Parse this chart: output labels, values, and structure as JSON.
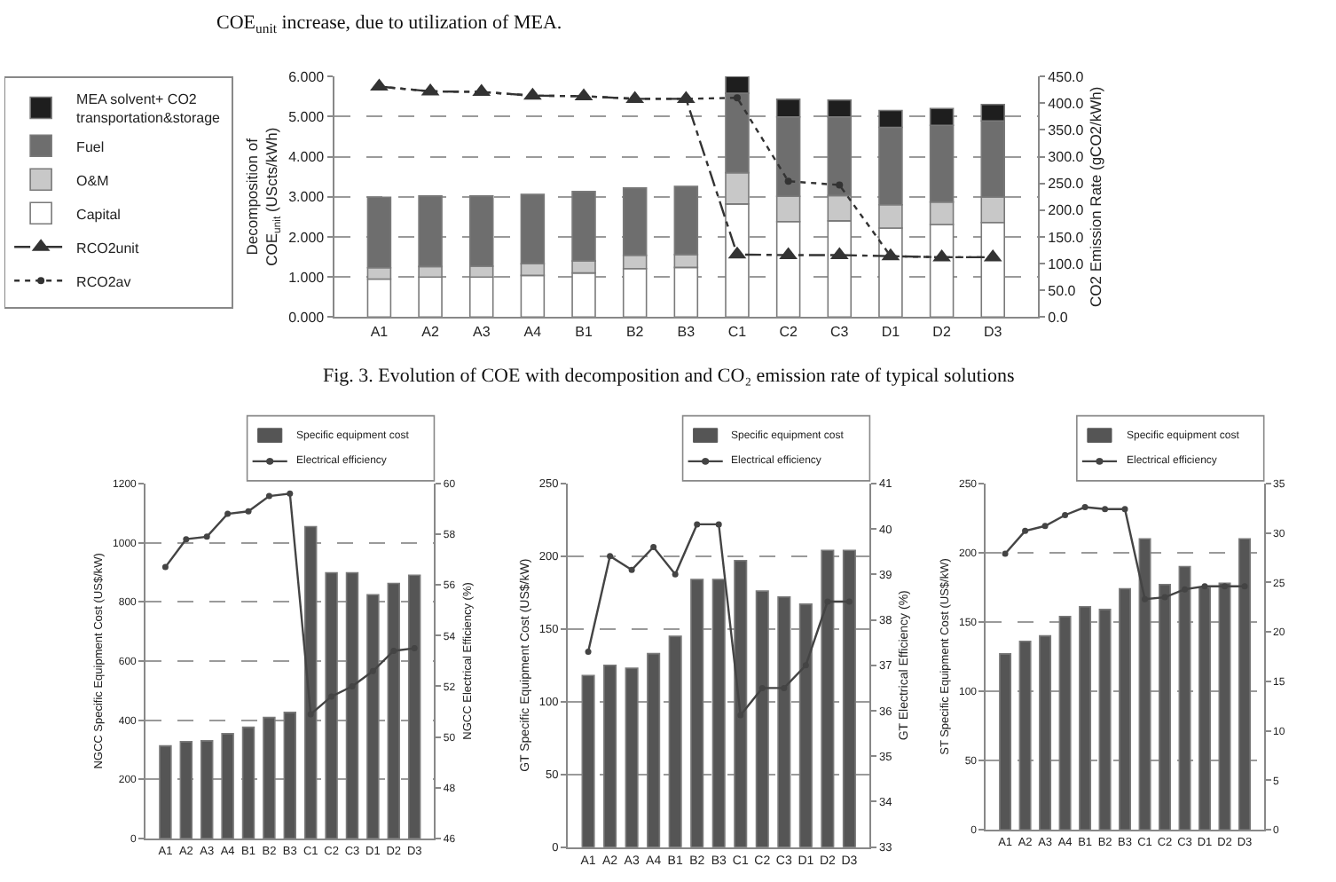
{
  "chart_data": [
    {
      "type": "bar",
      "stacked": true,
      "ylabel": "Decomposition of COE$_{unit}$ (UScts/kWh)",
      "y2label": "CO2 Emission Rate (gCO2/kWh)",
      "annotations": [
        "COE$_{unit}$ increase, due to utilization of MEA.",
        "Fig. 3. Evolution of COE with decomposition and CO₂ emission rate of typical solutions"
      ],
      "categories": [
        "A1",
        "A2",
        "A3",
        "A4",
        "B1",
        "B2",
        "B3",
        "C1",
        "C2",
        "C3",
        "D1",
        "D2",
        "D3"
      ],
      "series": [
        {
          "name": "Capital",
          "color": "#ffffff",
          "values": [
            0.95,
            1.0,
            1.0,
            1.04,
            1.1,
            1.21,
            1.24,
            2.82,
            2.38,
            2.4,
            2.22,
            2.31,
            2.36
          ]
        },
        {
          "name": "O&M",
          "color": "#c8c8c8",
          "values": [
            0.28,
            0.26,
            0.27,
            0.29,
            0.3,
            0.33,
            0.32,
            0.78,
            0.63,
            0.63,
            0.58,
            0.56,
            0.63
          ]
        },
        {
          "name": "Fuel",
          "color": "#6e6e6e",
          "values": [
            1.76,
            1.76,
            1.75,
            1.73,
            1.73,
            1.68,
            1.7,
            1.98,
            1.98,
            1.96,
            1.93,
            1.91,
            1.9
          ]
        },
        {
          "name": "MEA solvent+ CO2 transportation&storage",
          "color": "#1e1e1e",
          "values": [
            null,
            null,
            null,
            null,
            null,
            null,
            null,
            0.42,
            0.44,
            0.42,
            0.42,
            0.42,
            0.41
          ]
        },
        {
          "name": "RCO2unit",
          "type": "line",
          "axis": "y2",
          "color": "#333333",
          "marker": "triangle",
          "line_style": "dashed",
          "values": [
            431,
            422,
            421,
            414,
            413,
            408,
            408,
            117,
            116,
            116,
            114,
            112,
            112
          ]
        },
        {
          "name": "RCO2av",
          "type": "line",
          "axis": "y2",
          "color": "#333333",
          "marker": "circle",
          "line_style": "dotted",
          "values": [
            431,
            422,
            421,
            414,
            413,
            408,
            408,
            410,
            254,
            247,
            114,
            112,
            112
          ]
        }
      ],
      "ylim": [
        0,
        6
      ],
      "yticks": [
        {
          "value": 0,
          "label": "0.000"
        },
        {
          "value": 1,
          "label": "1.000"
        },
        {
          "value": 2,
          "label": "2.000"
        },
        {
          "value": 3,
          "label": "3.000"
        },
        {
          "value": 4,
          "label": "4.000"
        },
        {
          "value": 5,
          "label": "5.000"
        },
        {
          "value": 6,
          "label": "6.000"
        }
      ],
      "y2lim": [
        0,
        450
      ],
      "y2ticks": [
        {
          "value": 0,
          "label": "0.0"
        },
        {
          "value": 50,
          "label": "50.0"
        },
        {
          "value": 100,
          "label": "100.0"
        },
        {
          "value": 150,
          "label": "150.0"
        },
        {
          "value": 200,
          "label": "200.0"
        },
        {
          "value": 250,
          "label": "250.0"
        },
        {
          "value": 300,
          "label": "300.0"
        },
        {
          "value": 350,
          "label": "350.0"
        },
        {
          "value": 400,
          "label": "400.0"
        },
        {
          "value": 450,
          "label": "450.0"
        }
      ],
      "grid": "y",
      "legend": "top left"
    },
    {
      "type": "bar",
      "ylabel": "NGCC Specific Equipment Cost (US$/kW)",
      "y2label": "NGCC Electrical Efficiency (%)",
      "categories": [
        "A1",
        "A2",
        "A3",
        "A4",
        "B1",
        "B2",
        "B3",
        "C1",
        "C2",
        "C3",
        "D1",
        "D2",
        "D3"
      ],
      "series": [
        {
          "name": "Specific equipment cost",
          "color": "#555555",
          "values": [
            313,
            327,
            330,
            354,
            376,
            409,
            426,
            1054,
            898,
            898,
            824,
            862,
            890
          ]
        },
        {
          "name": "Electrical efficiency",
          "type": "line",
          "axis": "y2",
          "color": "#444444",
          "marker": "circle",
          "line_style": "solid",
          "values": [
            56.7,
            57.8,
            57.9,
            58.8,
            58.9,
            59.5,
            59.6,
            50.9,
            51.6,
            52.0,
            52.6,
            53.4,
            53.5
          ]
        }
      ],
      "ylim": [
        0,
        1200
      ],
      "yticks": [
        0,
        200,
        400,
        600,
        800,
        1000,
        1200
      ],
      "y2lim": [
        46,
        60
      ],
      "y2ticks": [
        46,
        48,
        50,
        52,
        54,
        56,
        58,
        60
      ],
      "grid": "y",
      "legend": "top right"
    },
    {
      "type": "bar",
      "ylabel": "GT Specific Equipment Cost (US$/kW)",
      "y2label": "GT Electrical Efficiency (%)",
      "categories": [
        "A1",
        "A2",
        "A3",
        "A4",
        "B1",
        "B2",
        "B3",
        "C1",
        "C2",
        "C3",
        "D1",
        "D2",
        "D3"
      ],
      "series": [
        {
          "name": "Specific equipment cost",
          "color": "#555555",
          "values": [
            118,
            125,
            123,
            133,
            145,
            184,
            184,
            197,
            176,
            172,
            167,
            204,
            204
          ]
        },
        {
          "name": "Electrical efficiency",
          "type": "line",
          "axis": "y2",
          "color": "#444444",
          "marker": "circle",
          "line_style": "solid",
          "values": [
            37.3,
            39.4,
            39.1,
            39.6,
            39.0,
            40.1,
            40.1,
            35.9,
            36.5,
            36.5,
            37.0,
            38.4,
            38.4
          ]
        }
      ],
      "ylim": [
        0,
        250
      ],
      "yticks": [
        0,
        50,
        100,
        150,
        200,
        250
      ],
      "y2lim": [
        33,
        41
      ],
      "y2ticks": [
        33,
        34,
        35,
        36,
        37,
        38,
        39,
        40,
        41
      ],
      "grid": "y",
      "legend": "top right"
    },
    {
      "type": "bar",
      "ylabel": "ST Specific Equipment Cost (US$/kW)",
      "categories": [
        "A1",
        "A2",
        "A3",
        "A4",
        "B1",
        "B2",
        "B3",
        "C1",
        "C2",
        "C3",
        "D1",
        "D2",
        "D3"
      ],
      "series": [
        {
          "name": "Specific equipment cost",
          "color": "#555555",
          "values": [
            127,
            136,
            140,
            154,
            161,
            159,
            174,
            210,
            177,
            190,
            175,
            178,
            210
          ]
        },
        {
          "name": "Electrical efficiency",
          "type": "line",
          "axis": "y2",
          "color": "#444444",
          "marker": "circle",
          "line_style": "solid",
          "values": [
            27.9,
            30.2,
            30.7,
            31.8,
            32.6,
            32.4,
            32.4,
            23.3,
            23.5,
            24.3,
            24.6,
            24.6,
            24.6
          ]
        }
      ],
      "ylim": [
        0,
        250
      ],
      "yticks": [
        0,
        50,
        100,
        150,
        200,
        250
      ],
      "y2lim": [
        0,
        35
      ],
      "y2ticks": [
        0,
        5,
        10,
        15,
        20,
        25,
        30,
        35
      ],
      "grid": "y",
      "legend": "top right"
    }
  ]
}
